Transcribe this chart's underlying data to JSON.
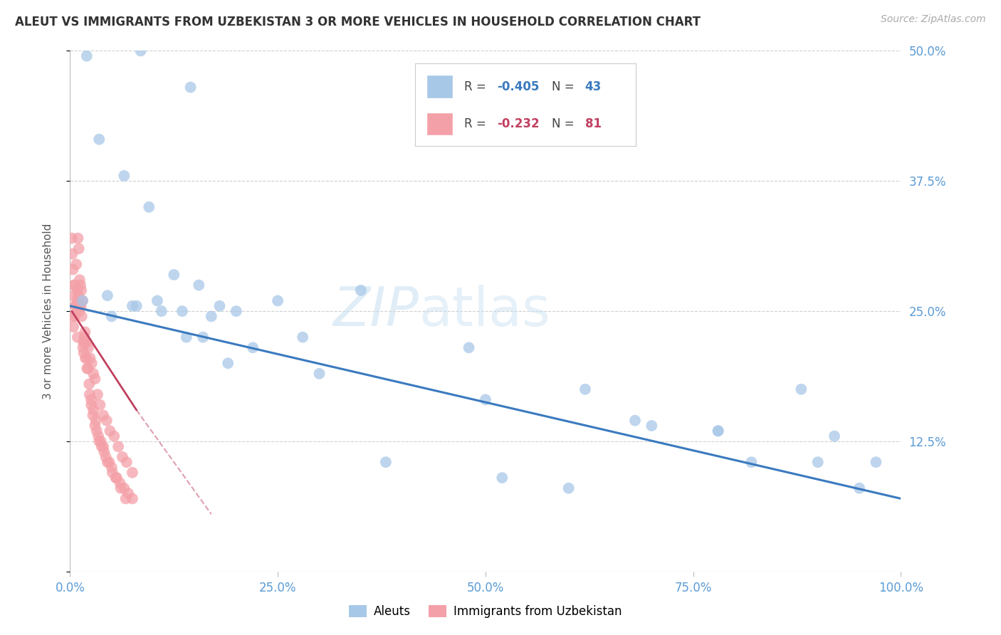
{
  "title": "ALEUT VS IMMIGRANTS FROM UZBEKISTAN 3 OR MORE VEHICLES IN HOUSEHOLD CORRELATION CHART",
  "source": "Source: ZipAtlas.com",
  "ylabel": "3 or more Vehicles in Household",
  "legend_blue_r": "-0.405",
  "legend_blue_n": "43",
  "legend_pink_r": "-0.232",
  "legend_pink_n": "81",
  "legend_label_blue": "Aleuts",
  "legend_label_pink": "Immigrants from Uzbekistan",
  "blue_color": "#a8c8e8",
  "pink_color": "#f4a0a8",
  "trendline_blue": "#3a7abf",
  "trendline_pink": "#c04060",
  "xlim": [
    0,
    100
  ],
  "ylim": [
    0,
    50
  ],
  "xticks": [
    0,
    25,
    50,
    75,
    100
  ],
  "xticklabels": [
    "0.0%",
    "25.0%",
    "50.0%",
    "75.0%",
    "100.0%"
  ],
  "ytick_vals": [
    0,
    12.5,
    25.0,
    37.5,
    50.0
  ],
  "ytick_labels_right": [
    "",
    "12.5%",
    "25.0%",
    "37.5%",
    "50.0%"
  ],
  "blue_x": [
    2.0,
    8.5,
    14.5,
    3.5,
    6.5,
    9.5,
    12.5,
    15.5,
    1.5,
    4.5,
    7.5,
    10.5,
    13.5,
    17.0,
    5.0,
    8.0,
    11.0,
    14.0,
    18.0,
    22.0,
    28.0,
    35.0,
    30.0,
    48.0,
    62.0,
    70.0,
    78.0,
    88.0,
    92.0,
    97.0,
    20.0,
    25.0,
    16.0,
    19.0,
    50.0,
    68.0,
    78.0,
    82.0,
    90.0,
    95.0,
    38.0,
    52.0,
    60.0
  ],
  "blue_y": [
    49.5,
    50.0,
    46.5,
    41.5,
    38.0,
    35.0,
    28.5,
    27.5,
    26.0,
    26.5,
    25.5,
    26.0,
    25.0,
    24.5,
    24.5,
    25.5,
    25.0,
    22.5,
    25.5,
    21.5,
    22.5,
    27.0,
    19.0,
    21.5,
    17.5,
    14.0,
    13.5,
    17.5,
    13.0,
    10.5,
    25.0,
    26.0,
    22.5,
    20.0,
    16.5,
    14.5,
    13.5,
    10.5,
    10.5,
    8.0,
    10.5,
    9.0,
    8.0
  ],
  "pink_x": [
    0.5,
    0.8,
    1.0,
    1.3,
    1.5,
    0.3,
    0.4,
    0.6,
    0.7,
    0.9,
    1.1,
    1.2,
    1.4,
    1.6,
    1.7,
    1.8,
    2.0,
    2.2,
    2.4,
    2.6,
    2.8,
    3.0,
    3.3,
    3.6,
    4.0,
    4.4,
    4.8,
    5.3,
    5.8,
    6.3,
    6.8,
    7.5,
    0.2,
    0.35,
    0.55,
    0.75,
    0.95,
    1.15,
    1.35,
    1.55,
    1.75,
    1.95,
    2.15,
    2.35,
    2.55,
    2.75,
    3.0,
    3.2,
    3.5,
    3.8,
    4.1,
    4.5,
    5.0,
    5.5,
    6.0,
    6.5,
    7.0,
    7.5,
    0.25,
    0.45,
    0.65,
    0.85,
    1.05,
    1.25,
    1.45,
    1.65,
    1.85,
    2.05,
    2.3,
    2.55,
    2.8,
    3.1,
    3.4,
    3.7,
    4.0,
    4.3,
    4.7,
    5.1,
    5.6,
    6.1,
    6.7
  ],
  "pink_y": [
    26.5,
    26.0,
    26.5,
    25.5,
    26.0,
    24.5,
    23.5,
    24.5,
    25.5,
    22.5,
    25.0,
    25.5,
    24.5,
    22.0,
    22.5,
    23.0,
    22.0,
    21.5,
    20.5,
    20.0,
    19.0,
    18.5,
    17.0,
    16.0,
    15.0,
    14.5,
    13.5,
    13.0,
    12.0,
    11.0,
    10.5,
    9.5,
    32.0,
    29.0,
    27.5,
    29.5,
    32.0,
    28.0,
    27.0,
    21.5,
    22.0,
    20.5,
    19.5,
    17.0,
    16.0,
    15.0,
    14.0,
    13.5,
    12.5,
    12.0,
    11.5,
    10.5,
    10.0,
    9.0,
    8.5,
    8.0,
    7.5,
    7.0,
    30.5,
    27.5,
    25.5,
    27.0,
    31.0,
    27.5,
    26.0,
    21.0,
    20.5,
    19.5,
    18.0,
    16.5,
    15.5,
    14.5,
    13.0,
    12.5,
    12.0,
    11.0,
    10.5,
    9.5,
    9.0,
    8.0,
    7.0
  ],
  "blue_trend_x0": 0,
  "blue_trend_y0": 25.5,
  "blue_trend_x1": 100,
  "blue_trend_y1": 7.0,
  "pink_trend_solid_x0": 0.2,
  "pink_trend_solid_y0": 25.0,
  "pink_trend_solid_x1": 8.0,
  "pink_trend_solid_y1": 15.5,
  "pink_trend_dash_x0": 8.0,
  "pink_trend_dash_y0": 15.5,
  "pink_trend_dash_x1": 17.0,
  "pink_trend_dash_y1": 5.5
}
